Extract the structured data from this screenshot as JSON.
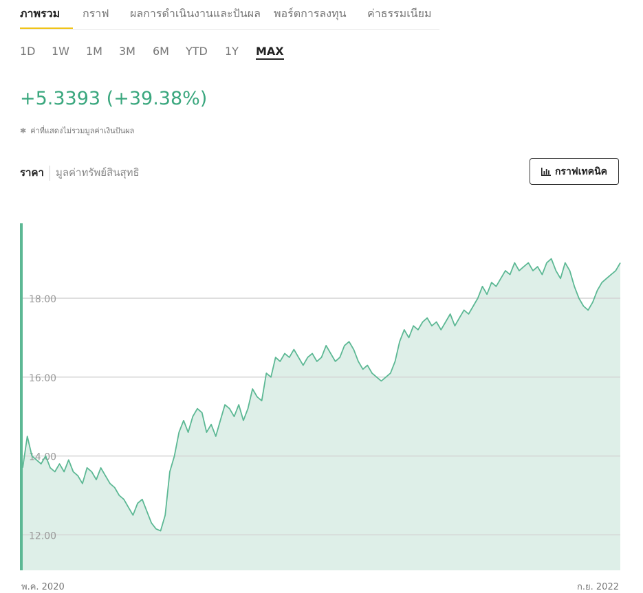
{
  "tabs": {
    "items": [
      {
        "label": "ภาพรวม",
        "active": true
      },
      {
        "label": "กราฟ"
      },
      {
        "label": "ผลการดำเนินงานและปันผล"
      },
      {
        "label": "พอร์ตการลงทุน"
      },
      {
        "label": "ค่าธรรมเนียม"
      }
    ],
    "accent_color": "#f0c419"
  },
  "ranges": {
    "items": [
      "1D",
      "1W",
      "1M",
      "3M",
      "6M",
      "YTD",
      "1Y",
      "MAX"
    ],
    "selected": "MAX"
  },
  "summary": {
    "change": "+5.3393 (+39.38%)",
    "change_color": "#3aa77e",
    "note_symbol": "✱",
    "note": "ค่าที่แสดงไม่รวมมูลค่าเงินปันผล"
  },
  "toggle": {
    "price_label": "ราคา",
    "nav_label": "มูลค่าทรัพย์สินสุทธิ"
  },
  "technical_button": {
    "label": "กราฟเทคนิค",
    "icon": "bar-chart-icon"
  },
  "chart_data": {
    "type": "area",
    "x_start_label": "พ.ค. 2020",
    "x_end_label": "ก.ย. 2022",
    "ylim": [
      11.1,
      19.9
    ],
    "y_ticks": [
      12.0,
      14.0,
      16.0,
      18.0
    ],
    "y_tick_labels": [
      "12.00",
      "14.00",
      "16.00",
      "18.00"
    ],
    "grid": true,
    "line_color": "#5cb894",
    "fill_color": "#deefe8",
    "series": [
      {
        "values": [
          13.7,
          14.5,
          14.0,
          13.9,
          13.8,
          14.0,
          13.7,
          13.6,
          13.8,
          13.6,
          13.9,
          13.6,
          13.5,
          13.3,
          13.7,
          13.6,
          13.4,
          13.7,
          13.5,
          13.3,
          13.2,
          13.0,
          12.9,
          12.7,
          12.5,
          12.8,
          12.9,
          12.6,
          12.3,
          12.15,
          12.1,
          12.5,
          13.6,
          14.0,
          14.6,
          14.9,
          14.6,
          15.0,
          15.2,
          15.1,
          14.6,
          14.8,
          14.5,
          14.9,
          15.3,
          15.2,
          15.0,
          15.3,
          14.9,
          15.2,
          15.7,
          15.5,
          15.4,
          16.1,
          16.0,
          16.5,
          16.4,
          16.6,
          16.5,
          16.7,
          16.5,
          16.3,
          16.5,
          16.6,
          16.4,
          16.5,
          16.8,
          16.6,
          16.4,
          16.5,
          16.8,
          16.9,
          16.7,
          16.4,
          16.2,
          16.3,
          16.1,
          16.0,
          15.9,
          16.0,
          16.1,
          16.4,
          16.9,
          17.2,
          17.0,
          17.3,
          17.2,
          17.4,
          17.5,
          17.3,
          17.4,
          17.2,
          17.4,
          17.6,
          17.3,
          17.5,
          17.7,
          17.6,
          17.8,
          18.0,
          18.3,
          18.1,
          18.4,
          18.3,
          18.5,
          18.7,
          18.6,
          18.9,
          18.7,
          18.8,
          18.9,
          18.7,
          18.8,
          18.6,
          18.9,
          19.0,
          18.7,
          18.5,
          18.9,
          18.7,
          18.3,
          18.0,
          17.8,
          17.7,
          17.9,
          18.2,
          18.4,
          18.5,
          18.6,
          18.7,
          18.9
        ]
      }
    ]
  }
}
